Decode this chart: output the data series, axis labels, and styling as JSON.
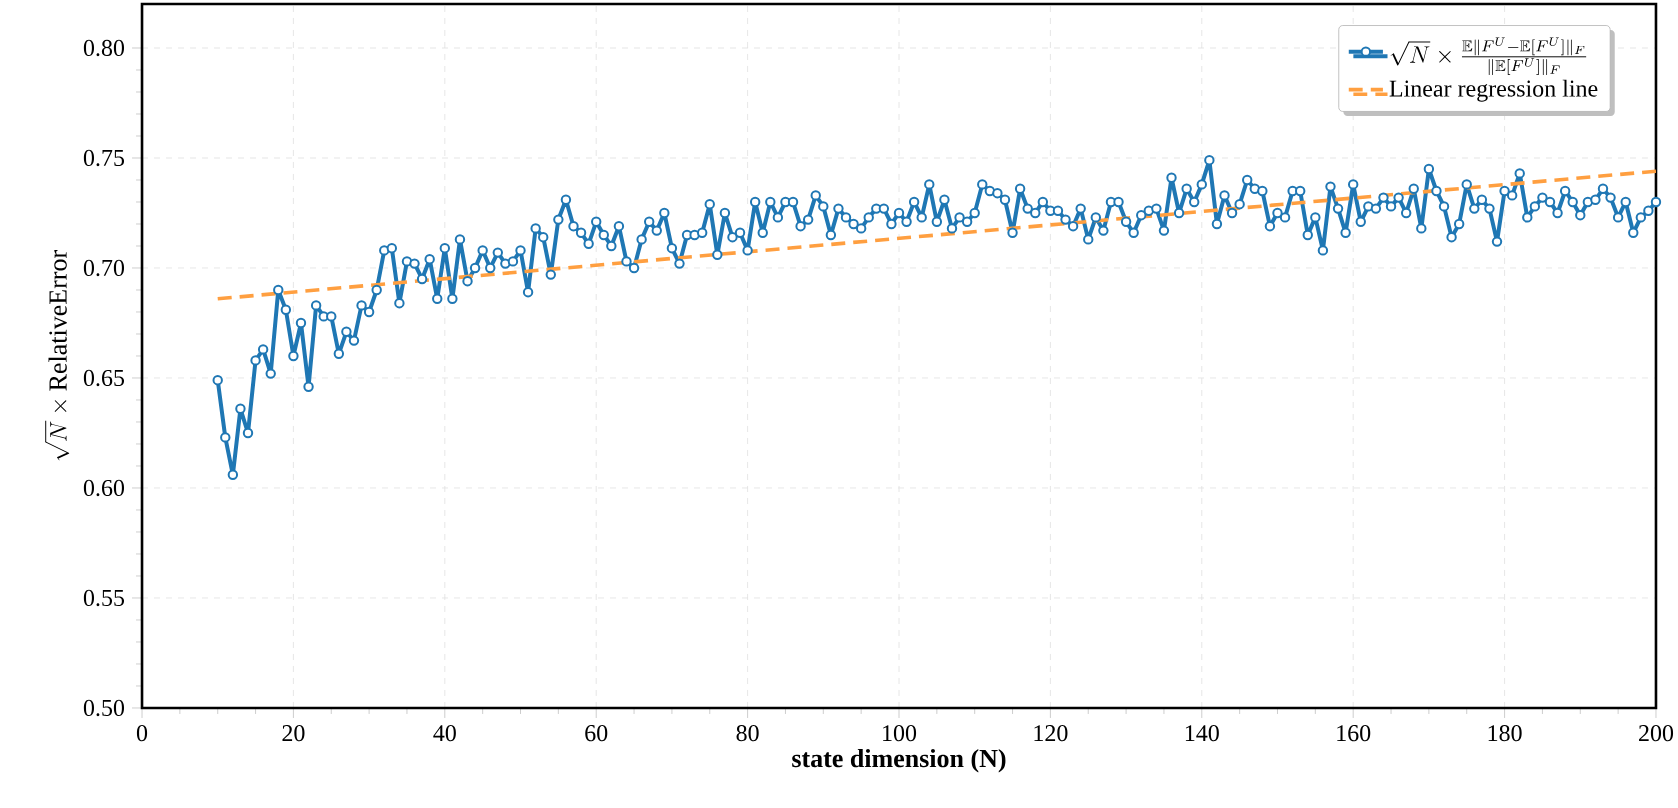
{
  "chart_data": {
    "type": "line",
    "xlabel": "state dimension (N)",
    "ylabel": "\\sqrt{N}\\times\\mathrm{RelativeError}",
    "xlim": [
      0,
      200
    ],
    "ylim": [
      0.5,
      0.82
    ],
    "xticks": [
      0,
      20,
      40,
      60,
      80,
      100,
      120,
      140,
      160,
      180,
      200
    ],
    "yticks": [
      {
        "value": 0.5,
        "label": "0.50"
      },
      {
        "value": 0.55,
        "label": "0.55"
      },
      {
        "value": 0.6,
        "label": "0.60"
      },
      {
        "value": 0.65,
        "label": "0.65"
      },
      {
        "value": 0.7,
        "label": "0.70"
      },
      {
        "value": 0.75,
        "label": "0.75"
      },
      {
        "value": 0.8,
        "label": "0.80"
      }
    ],
    "grid": true,
    "legend": "top right",
    "series": [
      {
        "name": "\\sqrt{N}\\times\\frac{\\mathbb{E}\\|F^{U}-\\mathbb{E}[F^{U}]\\|_{F}}{\\|\\mathbb{E}[F^{U}]\\|_{F}}",
        "color": "#1f77b4",
        "marker": "circle",
        "line_style": "solid",
        "x": [
          10,
          11,
          12,
          13,
          14,
          15,
          16,
          17,
          18,
          19,
          20,
          21,
          22,
          23,
          24,
          25,
          26,
          27,
          28,
          29,
          30,
          31,
          32,
          33,
          34,
          35,
          36,
          37,
          38,
          39,
          40,
          41,
          42,
          43,
          44,
          45,
          46,
          47,
          48,
          49,
          50,
          51,
          52,
          53,
          54,
          55,
          56,
          57,
          58,
          59,
          60,
          61,
          62,
          63,
          64,
          65,
          66,
          67,
          68,
          69,
          70,
          71,
          72,
          73,
          74,
          75,
          76,
          77,
          78,
          79,
          80,
          81,
          82,
          83,
          84,
          85,
          86,
          87,
          88,
          89,
          90,
          91,
          92,
          93,
          94,
          95,
          96,
          97,
          98,
          99,
          100,
          101,
          102,
          103,
          104,
          105,
          106,
          107,
          108,
          109,
          110,
          111,
          112,
          113,
          114,
          115,
          116,
          117,
          118,
          119,
          120,
          121,
          122,
          123,
          124,
          125,
          126,
          127,
          128,
          129,
          130,
          131,
          132,
          133,
          134,
          135,
          136,
          137,
          138,
          139,
          140,
          141,
          142,
          143,
          144,
          145,
          146,
          147,
          148,
          149,
          150,
          151,
          152,
          153,
          154,
          155,
          156,
          157,
          158,
          159,
          160,
          161,
          162,
          163,
          164,
          165,
          166,
          167,
          168,
          169,
          170,
          171,
          172,
          173,
          174,
          175,
          176,
          177,
          178,
          179,
          180,
          181,
          182,
          183,
          184,
          185,
          186,
          187,
          188,
          189,
          190,
          191,
          192,
          193,
          194,
          195,
          196,
          197,
          198,
          199,
          200
        ],
        "values": [
          0.649,
          0.623,
          0.606,
          0.636,
          0.625,
          0.658,
          0.663,
          0.652,
          0.69,
          0.681,
          0.66,
          0.675,
          0.646,
          0.683,
          0.678,
          0.678,
          0.661,
          0.671,
          0.667,
          0.683,
          0.68,
          0.69,
          0.708,
          0.709,
          0.684,
          0.703,
          0.702,
          0.695,
          0.704,
          0.686,
          0.709,
          0.686,
          0.713,
          0.694,
          0.7,
          0.708,
          0.7,
          0.707,
          0.702,
          0.703,
          0.708,
          0.689,
          0.718,
          0.714,
          0.697,
          0.722,
          0.731,
          0.719,
          0.716,
          0.711,
          0.721,
          0.715,
          0.71,
          0.719,
          0.703,
          0.7,
          0.713,
          0.721,
          0.717,
          0.725,
          0.709,
          0.702,
          0.715,
          0.715,
          0.716,
          0.729,
          0.706,
          0.725,
          0.714,
          0.716,
          0.708,
          0.73,
          0.716,
          0.73,
          0.723,
          0.73,
          0.73,
          0.719,
          0.722,
          0.733,
          0.728,
          0.715,
          0.727,
          0.723,
          0.72,
          0.718,
          0.723,
          0.727,
          0.727,
          0.72,
          0.725,
          0.721,
          0.73,
          0.723,
          0.738,
          0.721,
          0.731,
          0.718,
          0.723,
          0.721,
          0.725,
          0.738,
          0.735,
          0.734,
          0.731,
          0.716,
          0.736,
          0.727,
          0.725,
          0.73,
          0.726,
          0.726,
          0.722,
          0.719,
          0.727,
          0.713,
          0.723,
          0.717,
          0.73,
          0.73,
          0.721,
          0.716,
          0.724,
          0.726,
          0.727,
          0.717,
          0.741,
          0.725,
          0.736,
          0.73,
          0.738,
          0.749,
          0.72,
          0.733,
          0.725,
          0.729,
          0.74,
          0.736,
          0.735,
          0.719,
          0.725,
          0.723,
          0.735,
          0.735,
          0.715,
          0.723,
          0.708,
          0.737,
          0.727,
          0.716,
          0.738,
          0.721,
          0.728,
          0.727,
          0.732,
          0.728,
          0.732,
          0.725,
          0.736,
          0.718,
          0.745,
          0.735,
          0.728,
          0.714,
          0.72,
          0.738,
          0.727,
          0.731,
          0.727,
          0.712,
          0.735,
          0.733,
          0.743,
          0.723,
          0.728,
          0.732,
          0.73,
          0.725,
          0.735,
          0.73,
          0.724,
          0.73,
          0.731,
          0.736,
          0.732,
          0.723,
          0.73,
          0.716,
          0.723,
          0.726,
          0.73
        ]
      },
      {
        "name": "Linear regression line",
        "color": "#ff9f40",
        "marker": "none",
        "line_style": "dashed",
        "x": [
          10,
          200
        ],
        "values": [
          0.686,
          0.744
        ]
      }
    ]
  }
}
